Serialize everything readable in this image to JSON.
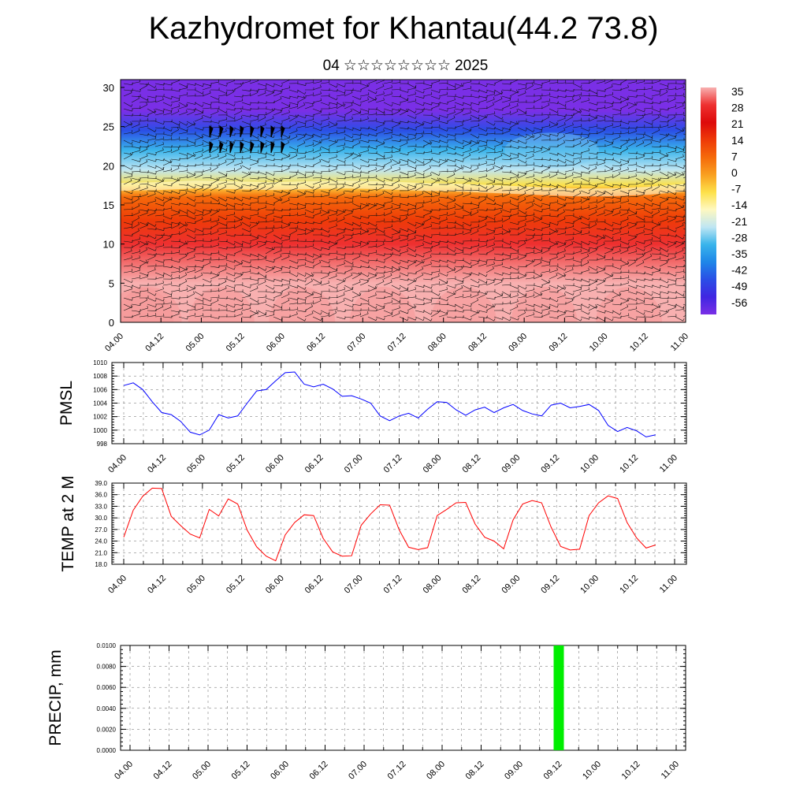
{
  "title": "Kazhydromet for Khantau(44.2 73.8)",
  "subtitle": {
    "day": "04",
    "month_glyphs": "☆☆☆☆☆☆☆☆",
    "year": "2025"
  },
  "chart_data": [
    {
      "type": "heatmap",
      "subtype": "time-height temperature cross-section with wind barbs",
      "x_ticks": [
        "04.00",
        "04.12",
        "05.00",
        "05.12",
        "06.00",
        "06.12",
        "07.00",
        "07.12",
        "08.00",
        "08.12",
        "09.00",
        "09.12",
        "10.00",
        "10.12",
        "11.00"
      ],
      "y_ticks": [
        0,
        5,
        10,
        15,
        20,
        25,
        30
      ],
      "ylim": [
        0,
        31
      ],
      "colorbar_labels": [
        "35",
        "28",
        "21",
        "14",
        "7",
        "0",
        "-7",
        "-14",
        "-21",
        "-28",
        "-35",
        "-42",
        "-49",
        "-56"
      ],
      "colorbar_colors": [
        "#f8b0b0",
        "#ee3030",
        "#dd0a0a",
        "#ee3a08",
        "#f56a0a",
        "#f9a020",
        "#fde14a",
        "#fef8c0",
        "#bfe6f3",
        "#39b4eb",
        "#1e86e8",
        "#2a4ee6",
        "#4026e2",
        "#7a2fe6"
      ],
      "temperature_profile": {
        "heights": [
          0,
          5,
          10,
          13,
          16,
          17.5,
          19.5,
          22,
          24.5,
          27,
          31
        ],
        "values": [
          35,
          30,
          21,
          10,
          0,
          -10,
          -22,
          -35,
          -48,
          -58,
          -63
        ]
      },
      "freezing_level": [
        17.3,
        17.4,
        17.6,
        17.5,
        17.4,
        17.5,
        17.6,
        17.5,
        17.3,
        17.2,
        17.0,
        16.8,
        16.6,
        16.6,
        16.8,
        17.2
      ]
    },
    {
      "type": "line",
      "ylabel": "PMSL",
      "ylim": [
        998,
        1010
      ],
      "y_ticks": [
        998,
        1000,
        1002,
        1004,
        1006,
        1008,
        1010
      ],
      "x_ticks": [
        "04.00",
        "04.12",
        "05.00",
        "05.12",
        "06.00",
        "06.12",
        "07.00",
        "07.12",
        "08.00",
        "08.12",
        "09.00",
        "09.12",
        "10.00",
        "10.12",
        "11.00"
      ],
      "color": "#0000ff",
      "values": [
        1006.6,
        1007.0,
        1006.0,
        1004.2,
        1002.6,
        1002.3,
        1001.3,
        999.7,
        999.3,
        1000.0,
        1002.3,
        1001.8,
        1002.1,
        1004.0,
        1005.8,
        1006.0,
        1007.3,
        1008.5,
        1008.6,
        1006.8,
        1006.4,
        1006.8,
        1006.1,
        1005.0,
        1005.1,
        1004.6,
        1004.0,
        1002.1,
        1001.4,
        1002.1,
        1002.5,
        1001.8,
        1003.1,
        1004.2,
        1004.1,
        1003.0,
        1002.2,
        1003.0,
        1003.4,
        1002.6,
        1003.3,
        1003.8,
        1002.9,
        1002.4,
        1002.1,
        1003.7,
        1004.0,
        1003.3,
        1003.5,
        1003.8,
        1002.9,
        1000.7,
        999.8,
        1000.4,
        999.9,
        999.0,
        999.3
      ]
    },
    {
      "type": "line",
      "ylabel": "TEMP at 2 M",
      "ylim": [
        18.0,
        39.0
      ],
      "y_ticks": [
        "18.0",
        "21.0",
        "24.0",
        "27.0",
        "30.0",
        "33.0",
        "36.0",
        "39.0"
      ],
      "x_ticks": [
        "04.00",
        "04.12",
        "05.00",
        "05.12",
        "06.00",
        "06.12",
        "07.00",
        "07.12",
        "08.00",
        "08.12",
        "09.00",
        "09.12",
        "10.00",
        "10.12",
        "11.00"
      ],
      "color": "#ff0000",
      "values": [
        25.0,
        32.0,
        35.6,
        37.7,
        37.6,
        30.4,
        28.0,
        25.8,
        24.8,
        32.2,
        30.5,
        34.9,
        33.6,
        26.8,
        22.5,
        20.1,
        18.9,
        25.6,
        28.8,
        30.8,
        30.6,
        24.7,
        21.2,
        20.1,
        20.2,
        28.1,
        31.0,
        33.4,
        33.3,
        26.9,
        22.4,
        21.8,
        22.3,
        30.6,
        32.2,
        33.9,
        34.0,
        28.4,
        25.0,
        24.0,
        22.0,
        29.5,
        33.6,
        34.5,
        33.9,
        27.6,
        22.6,
        21.7,
        21.9,
        30.6,
        33.9,
        35.7,
        35.0,
        28.8,
        24.8,
        22.2,
        23.0
      ]
    },
    {
      "type": "bar",
      "ylabel": "PRECIP, mm",
      "ylim": [
        0,
        0.01
      ],
      "y_ticks": [
        "0.0000",
        "0.0020",
        "0.0040",
        "0.0060",
        "0.0080",
        "0.0100"
      ],
      "x_ticks": [
        "04.00",
        "04.12",
        "05.00",
        "05.12",
        "06.00",
        "06.12",
        "07.00",
        "07.12",
        "08.00",
        "08.12",
        "09.00",
        "09.12",
        "10.00",
        "10.12",
        "11.00"
      ],
      "color": "#00ee00",
      "bars": [
        {
          "x": "09.12",
          "value": 0.01
        }
      ]
    }
  ]
}
